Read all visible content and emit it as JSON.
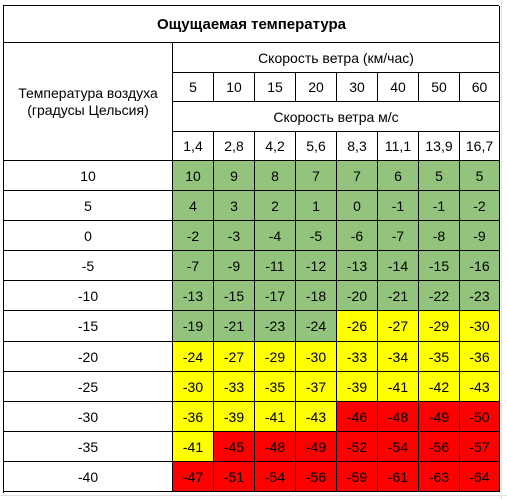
{
  "title": "Ощущаемая температура",
  "row_header_label": "Температура воздуха (градусы Цельсия)",
  "kmh_header": "Скорость ветра (км/час)",
  "ms_header": "Скорость ветра м/с",
  "kmh_values": [
    "5",
    "10",
    "15",
    "20",
    "30",
    "40",
    "50",
    "60"
  ],
  "ms_values": [
    "1,4",
    "2,8",
    "4,2",
    "5,6",
    "8,3",
    "11,1",
    "13,9",
    "16,7"
  ],
  "rows": [
    {
      "temp": "10",
      "values": [
        "10",
        "9",
        "8",
        "7",
        "7",
        "6",
        "5",
        "5"
      ],
      "levels": [
        "g",
        "g",
        "g",
        "g",
        "g",
        "g",
        "g",
        "g"
      ]
    },
    {
      "temp": "5",
      "values": [
        "4",
        "3",
        "2",
        "1",
        "0",
        "-1",
        "-1",
        "-2"
      ],
      "levels": [
        "g",
        "g",
        "g",
        "g",
        "g",
        "g",
        "g",
        "g"
      ]
    },
    {
      "temp": "0",
      "values": [
        "-2",
        "-3",
        "-4",
        "-5",
        "-6",
        "-7",
        "-8",
        "-9"
      ],
      "levels": [
        "g",
        "g",
        "g",
        "g",
        "g",
        "g",
        "g",
        "g"
      ]
    },
    {
      "temp": "-5",
      "values": [
        "-7",
        "-9",
        "-11",
        "-12",
        "-13",
        "-14",
        "-15",
        "-16"
      ],
      "levels": [
        "g",
        "g",
        "g",
        "g",
        "g",
        "g",
        "g",
        "g"
      ]
    },
    {
      "temp": "-10",
      "values": [
        "-13",
        "-15",
        "-17",
        "-18",
        "-20",
        "-21",
        "-22",
        "-23"
      ],
      "levels": [
        "g",
        "g",
        "g",
        "g",
        "g",
        "g",
        "g",
        "g"
      ]
    },
    {
      "temp": "-15",
      "values": [
        "-19",
        "-21",
        "-23",
        "-24",
        "-26",
        "-27",
        "-29",
        "-30"
      ],
      "levels": [
        "g",
        "g",
        "g",
        "g",
        "y",
        "y",
        "y",
        "y"
      ]
    },
    {
      "temp": "-20",
      "values": [
        "-24",
        "-27",
        "-29",
        "-30",
        "-33",
        "-34",
        "-35",
        "-36"
      ],
      "levels": [
        "y",
        "y",
        "y",
        "y",
        "y",
        "y",
        "y",
        "y"
      ]
    },
    {
      "temp": "-25",
      "values": [
        "-30",
        "-33",
        "-35",
        "-37",
        "-39",
        "-41",
        "-42",
        "-43"
      ],
      "levels": [
        "y",
        "y",
        "y",
        "y",
        "y",
        "y",
        "y",
        "y"
      ]
    },
    {
      "temp": "-30",
      "values": [
        "-36",
        "-39",
        "-41",
        "-43",
        "-46",
        "-48",
        "-49",
        "-50"
      ],
      "levels": [
        "y",
        "y",
        "y",
        "y",
        "r",
        "r",
        "r",
        "r"
      ]
    },
    {
      "temp": "-35",
      "values": [
        "-41",
        "-45",
        "-48",
        "-49",
        "-52",
        "-54",
        "-56",
        "-57"
      ],
      "levels": [
        "y",
        "r",
        "r",
        "r",
        "r",
        "r",
        "r",
        "r"
      ]
    },
    {
      "temp": "-40",
      "values": [
        "-47",
        "-51",
        "-54",
        "-56",
        "-59",
        "-61",
        "-63",
        "-64"
      ],
      "levels": [
        "r",
        "r",
        "r",
        "r",
        "r",
        "r",
        "r",
        "r"
      ]
    }
  ],
  "colors": {
    "g": "#93c47d",
    "y": "#ffff00",
    "r": "#ff0000",
    "header": "#ffffff"
  }
}
